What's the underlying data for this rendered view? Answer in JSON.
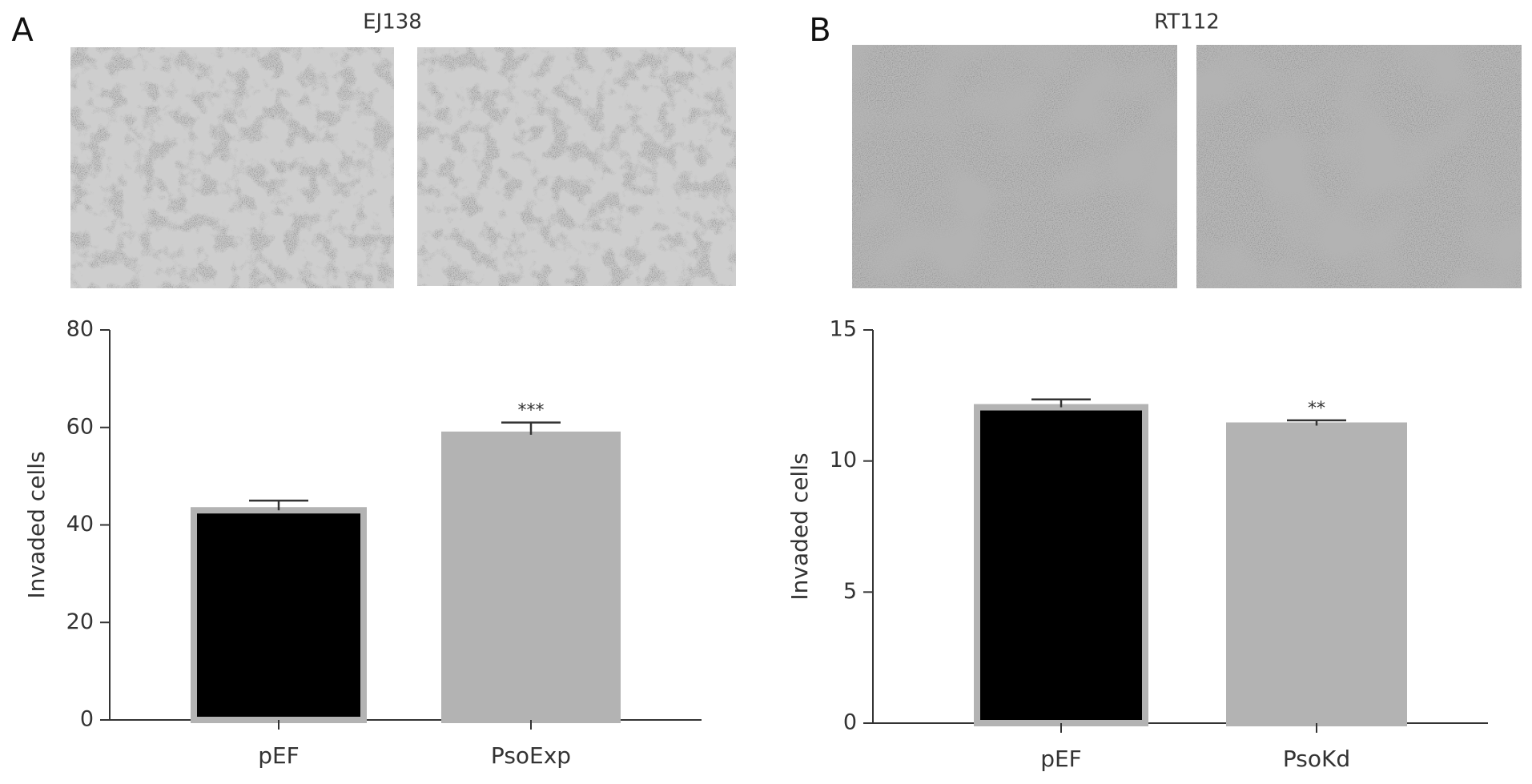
{
  "chart_data": [
    {
      "type": "bar",
      "panel": "A",
      "title": "EJ138",
      "y_label": "Invaded cells",
      "categories": [
        "pEF",
        "PsoExp"
      ],
      "values": [
        43,
        58.5
      ],
      "errors": [
        2,
        2.5
      ],
      "colors": [
        "#000000",
        "#b3b3b3"
      ],
      "significance": [
        null,
        "***"
      ],
      "ylim": [
        0,
        80
      ],
      "yticks": [
        0,
        20,
        40,
        60,
        80
      ]
    },
    {
      "type": "bar",
      "panel": "B",
      "title": "RT112",
      "y_label": "Invaded cells",
      "categories": [
        "pEF",
        "PsoKd"
      ],
      "values": [
        12.05,
        11.35
      ],
      "errors": [
        0.3,
        0.2
      ],
      "colors": [
        "#000000",
        "#b3b3b3"
      ],
      "significance": [
        null,
        "**"
      ],
      "ylim": [
        0,
        15
      ],
      "yticks": [
        0,
        5,
        10,
        15
      ]
    }
  ]
}
